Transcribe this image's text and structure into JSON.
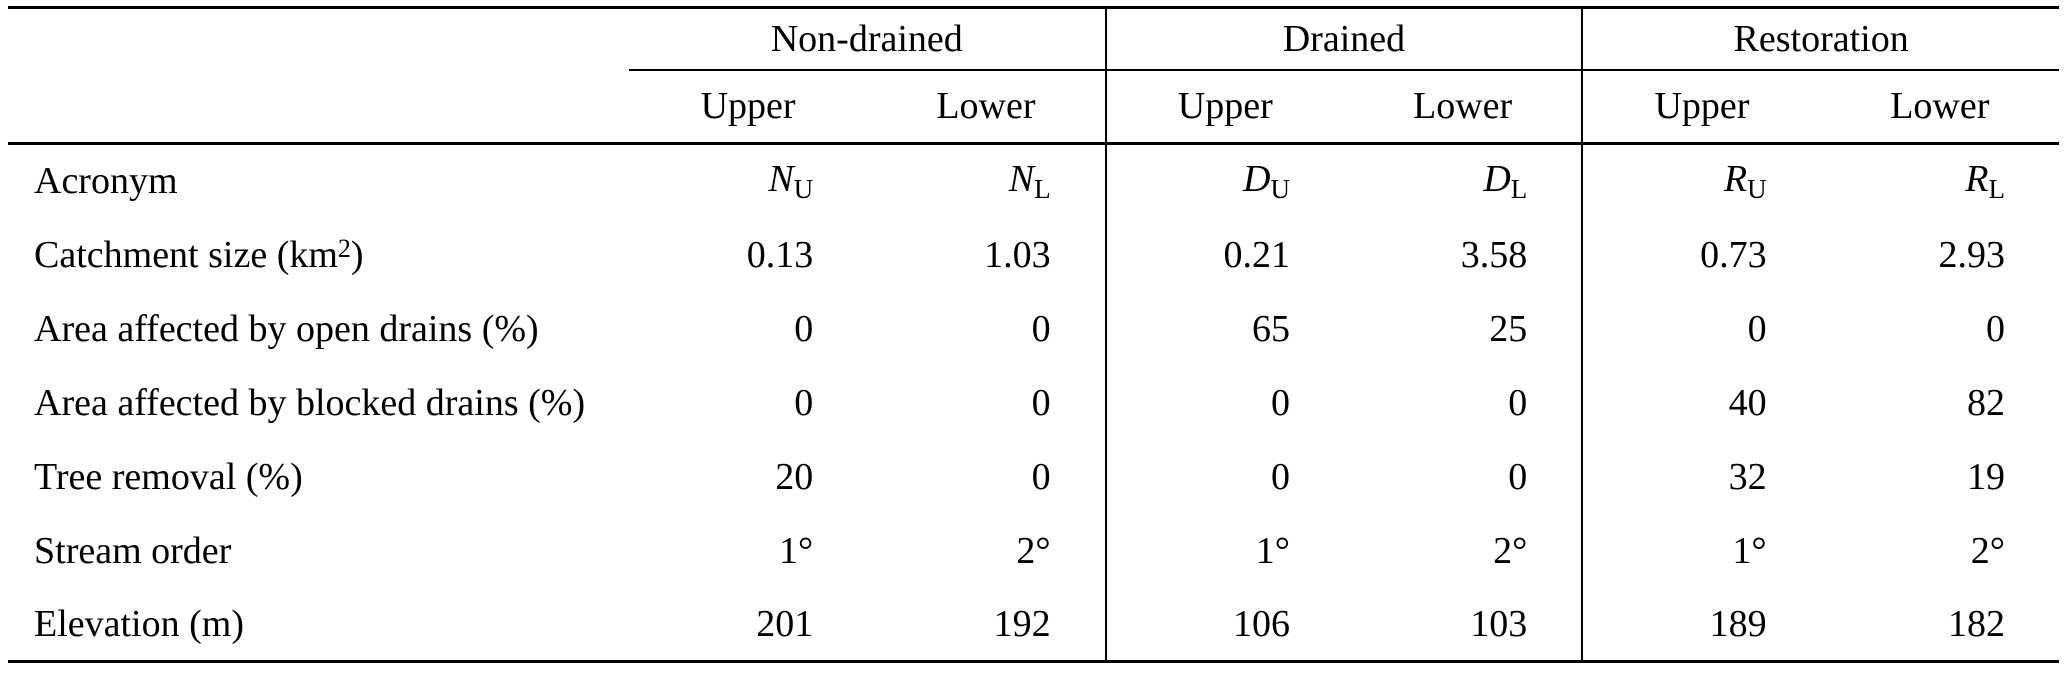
{
  "table": {
    "groups": [
      {
        "label": "Non-drained"
      },
      {
        "label": "Drained"
      },
      {
        "label": "Restoration"
      }
    ],
    "subheader": {
      "upper": "Upper",
      "lower": "Lower"
    },
    "rows": [
      {
        "label": "Acronym",
        "label_sup": "",
        "label_end": "",
        "cells": [
          {
            "base": "N",
            "sub": "U"
          },
          {
            "base": "N",
            "sub": "L"
          },
          {
            "base": "D",
            "sub": "U"
          },
          {
            "base": "D",
            "sub": "L"
          },
          {
            "base": "R",
            "sub": "U"
          },
          {
            "base": "R",
            "sub": "L"
          }
        ]
      },
      {
        "label": "Catchment size (km",
        "label_sup": "2",
        "label_end": ")",
        "values": [
          "0.13",
          "1.03",
          "0.21",
          "3.58",
          "0.73",
          "2.93"
        ]
      },
      {
        "label": "Area affected by open drains (%)",
        "label_sup": "",
        "label_end": "",
        "values": [
          "0",
          "0",
          "65",
          "25",
          "0",
          "0"
        ]
      },
      {
        "label": "Area affected by blocked drains (%)",
        "label_sup": "",
        "label_end": "",
        "values": [
          "0",
          "0",
          "0",
          "0",
          "40",
          "82"
        ]
      },
      {
        "label": "Tree removal (%)",
        "label_sup": "",
        "label_end": "",
        "values": [
          "20",
          "0",
          "0",
          "0",
          "32",
          "19"
        ]
      },
      {
        "label": "Stream order",
        "label_sup": "",
        "label_end": "",
        "values": [
          "1°",
          "2°",
          "1°",
          "2°",
          "1°",
          "2°"
        ]
      },
      {
        "label": "Elevation (m)",
        "label_sup": "",
        "label_end": "",
        "values": [
          "201",
          "192",
          "106",
          "103",
          "189",
          "182"
        ]
      }
    ]
  }
}
